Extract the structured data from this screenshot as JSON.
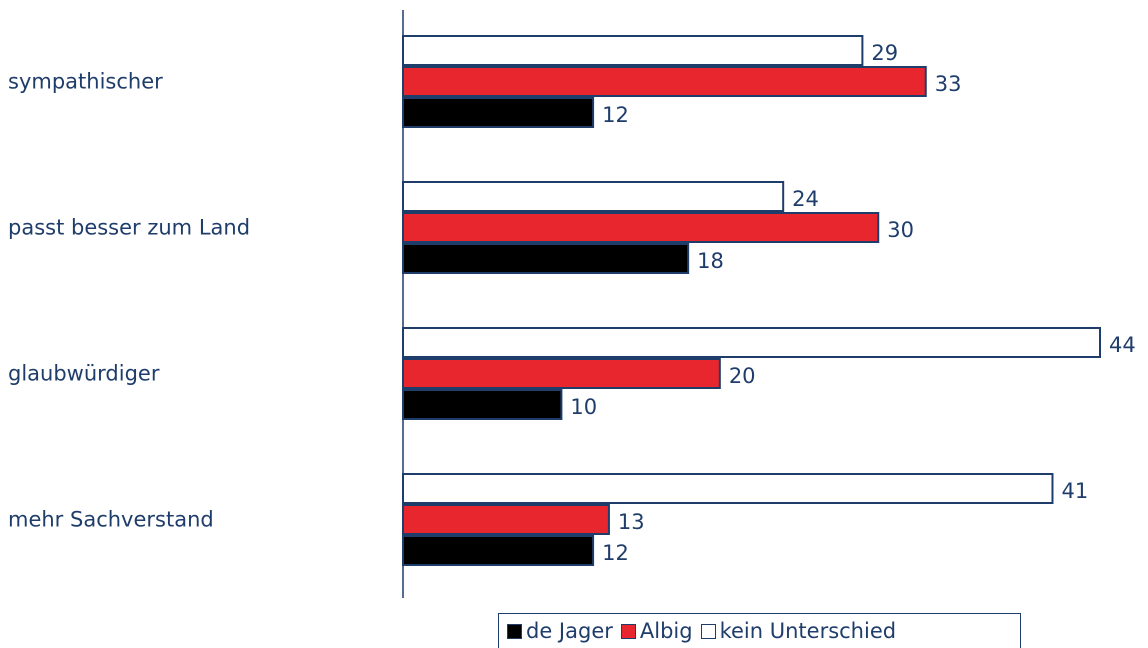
{
  "chart_data": {
    "type": "bar",
    "orientation": "horizontal",
    "categories": [
      "sympathischer",
      "passt besser zum Land",
      "glaubwürdiger",
      "mehr Sachverstand"
    ],
    "series": [
      {
        "name": "kein Unterschied",
        "values": [
          29,
          24,
          44,
          41
        ],
        "color": "#ffffff"
      },
      {
        "name": "Albig",
        "values": [
          33,
          30,
          20,
          13
        ],
        "color": "#e8262d"
      },
      {
        "name": "de Jager",
        "values": [
          12,
          18,
          10,
          12
        ],
        "color": "#000000"
      }
    ],
    "xlim": [
      0,
      44
    ],
    "legend_position": "bottom",
    "legend_order": [
      "de Jager",
      "Albig",
      "kein Unterschied"
    ],
    "grid": false,
    "outline_color": "#1f3d6b"
  }
}
